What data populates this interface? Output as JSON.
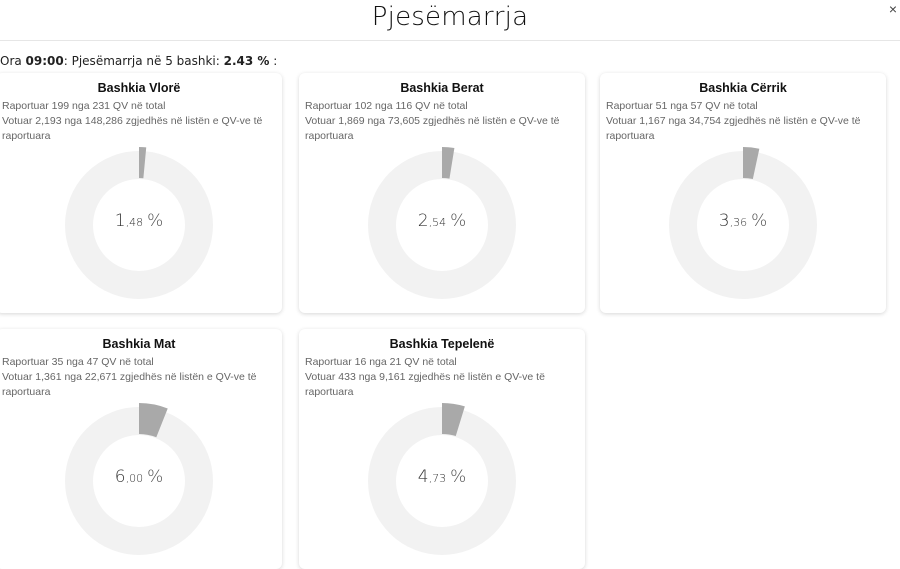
{
  "header": {
    "title": "Pjesëmarrja",
    "close_label": "×"
  },
  "summary": {
    "prefix": "Ora ",
    "time": "09:00",
    "middle": ": Pjesëmarrja në 5 bashki: ",
    "value": "2.43 %",
    "suffix": " :"
  },
  "municipalities": [
    {
      "name": "Bashkia Vlorë",
      "reported": "Raportuar 199 nga 231 QV në total",
      "voted": "Votuar 2,193 nga 148,286 zgjedhës në listën e QV-ve të raportuara",
      "int": "1",
      "dec": ",48",
      "pct": "%",
      "value": 1.48
    },
    {
      "name": "Bashkia Berat",
      "reported": "Raportuar 102 nga 116 QV në total",
      "voted": "Votuar 1,869 nga 73,605 zgjedhës në listën e QV-ve të raportuara",
      "int": "2",
      "dec": ",54",
      "pct": "%",
      "value": 2.54
    },
    {
      "name": "Bashkia Cërrik",
      "reported": "Raportuar 51 nga 57 QV në total",
      "voted": "Votuar 1,167 nga 34,754 zgjedhës në listën e QV-ve të raportuara",
      "int": "3",
      "dec": ",36",
      "pct": "%",
      "value": 3.36
    },
    {
      "name": "Bashkia Mat",
      "reported": "Raportuar 35 nga 47 QV në total",
      "voted": "Votuar 1,361 nga 22,671 zgjedhës në listën e QV-ve të raportuara",
      "int": "6",
      "dec": ",00",
      "pct": "%",
      "value": 6.0
    },
    {
      "name": "Bashkia Tepelenë",
      "reported": "Raportuar 16 nga 21 QV në total",
      "voted": "Votuar 433 nga 9,161 zgjedhës në listën e QV-ve të raportuara",
      "int": "4",
      "dec": ",73",
      "pct": "%",
      "value": 4.73
    }
  ],
  "colors": {
    "ring": "#f2f2f2",
    "segment": "#a9a9a9"
  }
}
